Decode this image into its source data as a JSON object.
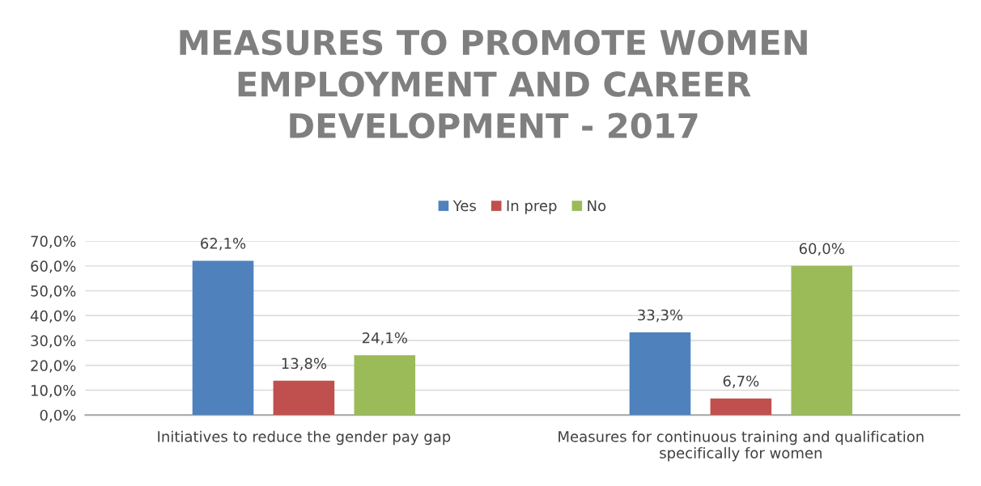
{
  "chart_data": {
    "type": "bar",
    "title": "MEASURES TO PROMOTE WOMEN\nEMPLOYMENT AND CAREER\nDEVELOPMENT - 2017",
    "categories": [
      "Initiatives to reduce the gender pay gap",
      "Measures for continuous training and qualification\nspecifically for women"
    ],
    "series": [
      {
        "name": "Yes",
        "color": "#4f81bd",
        "values": [
          62.1,
          33.3
        ],
        "value_labels": [
          "62,1%",
          "33,3%"
        ]
      },
      {
        "name": "In prep",
        "color": "#c0504d",
        "values": [
          13.8,
          6.7
        ],
        "value_labels": [
          "13,8%",
          "6,7%"
        ]
      },
      {
        "name": "No",
        "color": "#9bbb59",
        "values": [
          24.1,
          60.0
        ],
        "value_labels": [
          "24,1%",
          "60,0%"
        ]
      }
    ],
    "ylim": [
      0,
      70
    ],
    "yticks": [
      {
        "value": 0,
        "label": "0,0%"
      },
      {
        "value": 10,
        "label": "10,0%"
      },
      {
        "value": 20,
        "label": "20,0%"
      },
      {
        "value": 30,
        "label": "30,0%"
      },
      {
        "value": 40,
        "label": "40,0%"
      },
      {
        "value": 50,
        "label": "50,0%"
      },
      {
        "value": 60,
        "label": "60,0%"
      },
      {
        "value": 70,
        "label": "70,0%"
      }
    ],
    "grid": "y",
    "legend": "top"
  }
}
